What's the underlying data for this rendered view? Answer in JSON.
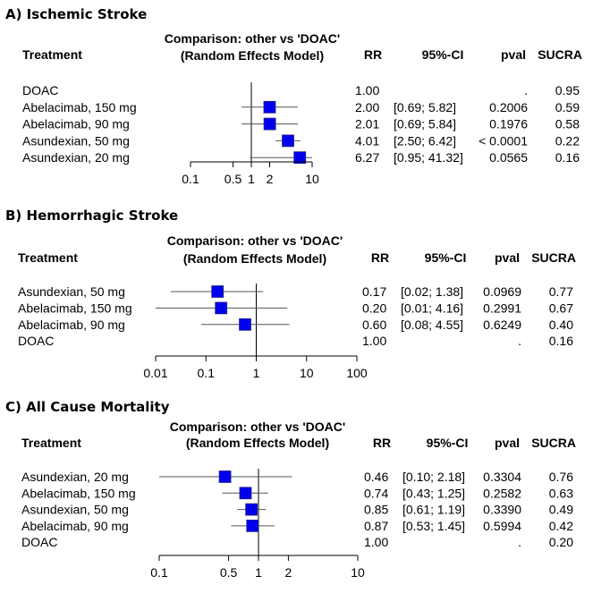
{
  "chart_data": [
    {
      "type": "forest",
      "panel_title": "A) Ischemic Stroke",
      "comparison_title": "Comparison: other vs 'DOAC'",
      "model_title": "(Random Effects Model)",
      "columns": {
        "treatment": "Treatment",
        "rr": "RR",
        "ci": "95%-CI",
        "pval": "pval",
        "sucra": "SUCRA"
      },
      "x_scale": "log",
      "xlim": [
        0.1,
        10
      ],
      "ticks": [
        0.1,
        0.5,
        1,
        2,
        10
      ],
      "tick_labels": [
        "0.1",
        "0.5",
        "1",
        "2",
        "10"
      ],
      "reference_line": 1,
      "rows": [
        {
          "treatment": "DOAC",
          "rr": "1.00",
          "ci": "",
          "pval": ".",
          "sucra": "0.95",
          "est": null,
          "lo": null,
          "hi": null
        },
        {
          "treatment": "Abelacimab, 150 mg",
          "rr": "2.00",
          "ci": "[0.69;  5.82]",
          "pval": "0.2006",
          "sucra": "0.59",
          "est": 2.0,
          "lo": 0.69,
          "hi": 5.82
        },
        {
          "treatment": "Abelacimab, 90 mg",
          "rr": "2.01",
          "ci": "[0.69;  5.84]",
          "pval": "0.1976",
          "sucra": "0.58",
          "est": 2.01,
          "lo": 0.69,
          "hi": 5.84
        },
        {
          "treatment": "Asundexian, 50 mg",
          "rr": "4.01",
          "ci": "[2.50;  6.42]",
          "pval": "< 0.0001",
          "sucra": "0.22",
          "est": 4.01,
          "lo": 2.5,
          "hi": 6.42
        },
        {
          "treatment": "Asundexian, 20 mg",
          "rr": "6.27",
          "ci": "[0.95; 41.32]",
          "pval": "0.0565",
          "sucra": "0.16",
          "est": 6.27,
          "lo": 0.95,
          "hi": 41.32
        }
      ]
    },
    {
      "type": "forest",
      "panel_title": "B) Hemorrhagic Stroke",
      "comparison_title": "Comparison: other vs 'DOAC'",
      "model_title": "(Random Effects Model)",
      "columns": {
        "treatment": "Treatment",
        "rr": "RR",
        "ci": "95%-CI",
        "pval": "pval",
        "sucra": "SUCRA"
      },
      "x_scale": "log",
      "xlim": [
        0.01,
        100
      ],
      "ticks": [
        0.01,
        0.1,
        1,
        10,
        100
      ],
      "tick_labels": [
        "0.01",
        "0.1",
        "1",
        "10",
        "100"
      ],
      "reference_line": 1,
      "rows": [
        {
          "treatment": "Asundexian, 50 mg",
          "rr": "0.17",
          "ci": "[0.02; 1.38]",
          "pval": "0.0969",
          "sucra": "0.77",
          "est": 0.17,
          "lo": 0.02,
          "hi": 1.38
        },
        {
          "treatment": "Abelacimab, 150 mg",
          "rr": "0.20",
          "ci": "[0.01; 4.16]",
          "pval": "0.2991",
          "sucra": "0.67",
          "est": 0.2,
          "lo": 0.01,
          "hi": 4.16
        },
        {
          "treatment": "Abelacimab, 90 mg",
          "rr": "0.60",
          "ci": "[0.08; 4.55]",
          "pval": "0.6249",
          "sucra": "0.40",
          "est": 0.6,
          "lo": 0.08,
          "hi": 4.55
        },
        {
          "treatment": "DOAC",
          "rr": "1.00",
          "ci": "",
          "pval": ".",
          "sucra": "0.16",
          "est": null,
          "lo": null,
          "hi": null
        }
      ]
    },
    {
      "type": "forest",
      "panel_title": "C) All Cause Mortality",
      "comparison_title": "Comparison: other vs 'DOAC'",
      "model_title": "(Random Effects Model)",
      "columns": {
        "treatment": "Treatment",
        "rr": "RR",
        "ci": "95%-CI",
        "pval": "pval",
        "sucra": "SUCRA"
      },
      "x_scale": "log",
      "xlim": [
        0.1,
        10
      ],
      "ticks": [
        0.1,
        0.5,
        1,
        2,
        10
      ],
      "tick_labels": [
        "0.1",
        "0.5",
        "1",
        "2",
        "10"
      ],
      "reference_line": 1,
      "rows": [
        {
          "treatment": "Asundexian, 20 mg",
          "rr": "0.46",
          "ci": "[0.10; 2.18]",
          "pval": "0.3304",
          "sucra": "0.76",
          "est": 0.46,
          "lo": 0.1,
          "hi": 2.18
        },
        {
          "treatment": "Abelacimab, 150 mg",
          "rr": "0.74",
          "ci": "[0.43; 1.25]",
          "pval": "0.2582",
          "sucra": "0.63",
          "est": 0.74,
          "lo": 0.43,
          "hi": 1.25
        },
        {
          "treatment": "Asundexian, 50 mg",
          "rr": "0.85",
          "ci": "[0.61; 1.19]",
          "pval": "0.3390",
          "sucra": "0.49",
          "est": 0.85,
          "lo": 0.61,
          "hi": 1.19
        },
        {
          "treatment": "Abelacimab, 90 mg",
          "rr": "0.87",
          "ci": "[0.53; 1.45]",
          "pval": "0.5994",
          "sucra": "0.42",
          "est": 0.87,
          "lo": 0.53,
          "hi": 1.45
        },
        {
          "treatment": "DOAC",
          "rr": "1.00",
          "ci": "",
          "pval": ".",
          "sucra": "0.20",
          "est": null,
          "lo": null,
          "hi": null
        }
      ]
    }
  ],
  "colors": {
    "square": "#0000ee",
    "square_border": "#2a2a7a",
    "line": "#000000",
    "ci_line": "#555555",
    "ref_line": "#888888"
  }
}
